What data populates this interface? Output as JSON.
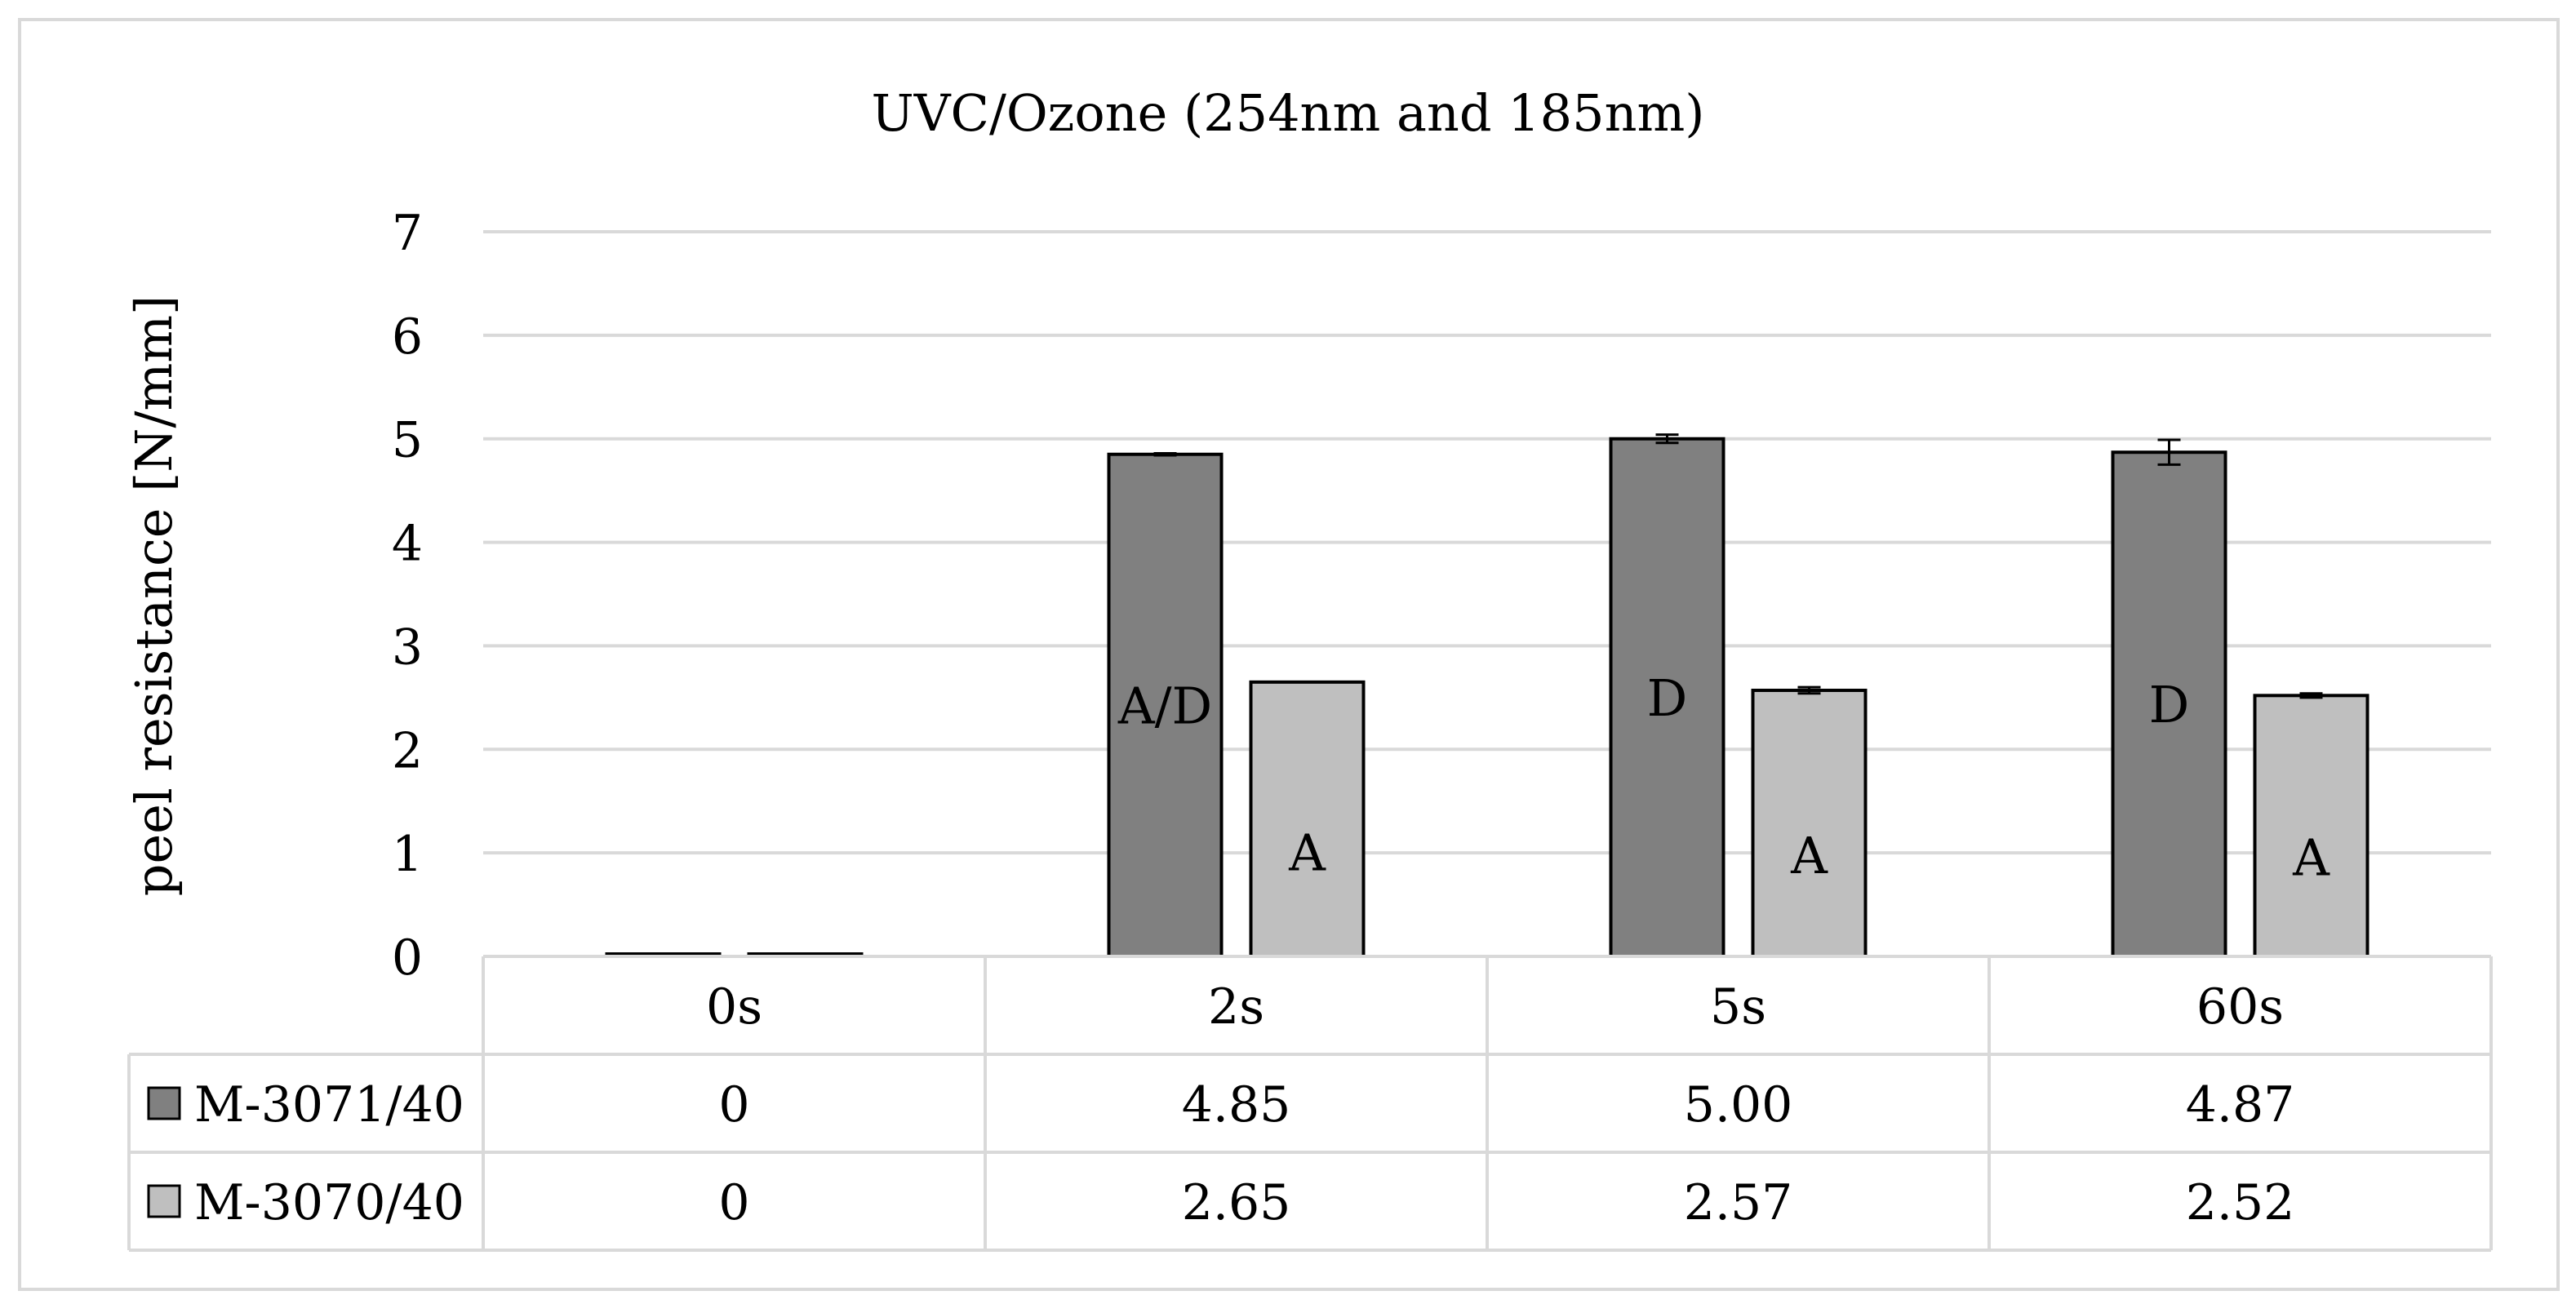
{
  "chart_data": {
    "type": "bar",
    "title": "UVC/Ozone (254nm and 185nm)",
    "ylabel": "peel resistance [N/mm]",
    "xlabel": "",
    "ylim": [
      0,
      7
    ],
    "yticks": [
      0,
      1,
      2,
      3,
      4,
      5,
      6,
      7
    ],
    "grid": true,
    "legend_placement": "data-table",
    "categories": [
      "0s",
      "2s",
      "5s",
      "60s"
    ],
    "series": [
      {
        "name": "M-3071/40",
        "color": "#808080",
        "values": [
          0,
          4.85,
          5.0,
          4.87
        ],
        "table_values": [
          "0",
          "4.85",
          "5.00",
          "4.87"
        ],
        "error": [
          0,
          0.01,
          0.04,
          0.12
        ],
        "annotations": [
          "",
          "A/D",
          "D",
          "D"
        ]
      },
      {
        "name": "M-3070/40",
        "color": "#bfbfbf",
        "values": [
          0,
          2.65,
          2.57,
          2.52
        ],
        "table_values": [
          "0",
          "2.65",
          "2.57",
          "2.52"
        ],
        "error": [
          0,
          0,
          0.03,
          0.02
        ],
        "annotations": [
          "",
          "A",
          "A",
          "A"
        ]
      }
    ]
  }
}
